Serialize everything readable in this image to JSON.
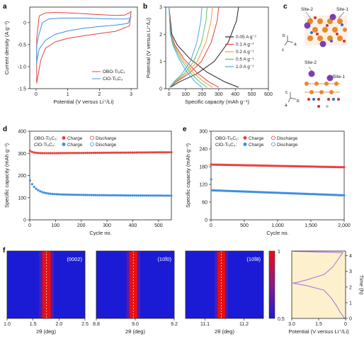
{
  "panels": {
    "a": {
      "label": "a"
    },
    "b": {
      "label": "b"
    },
    "c": {
      "label": "c",
      "site2_top": "Site-2",
      "site1_top": "Site-1",
      "site2_bot": "Site-2",
      "site1_bot": "Site-1",
      "axes_top": {
        "b": "b",
        "c": "c",
        "a": "a"
      },
      "axes_bot": {
        "c": "c",
        "a": "a",
        "b": "b"
      }
    },
    "d": {
      "label": "d"
    },
    "e": {
      "label": "e"
    },
    "f": {
      "label": "f"
    }
  },
  "colors": {
    "obo": "#e8413f",
    "clo": "#3f8fe0",
    "bg_map": "#1b1bd6",
    "potential_bg": "#fdf0cc",
    "potential_line": "#a070e0"
  },
  "chart_data": [
    {
      "id": "a",
      "type": "line",
      "xlabel": "Potential (V versus Li⁺/Li)",
      "ylabel": "Current density (A g⁻¹)",
      "xlim": [
        -0.2,
        3.2
      ],
      "ylim": [
        -1.5,
        0.35
      ],
      "xticks": [
        "0",
        "1",
        "2",
        "3"
      ],
      "yticks": [
        "0",
        "-0.5",
        "-1.0",
        "-1.5"
      ],
      "series": [
        {
          "name": "OBO-Ti₃C₂",
          "color": "#e8413f",
          "upper": [
            [
              0.02,
              -0.35
            ],
            [
              0.1,
              0.15
            ],
            [
              0.3,
              0.22
            ],
            [
              0.6,
              0.23
            ],
            [
              1,
              0.22
            ],
            [
              1.5,
              0.2
            ],
            [
              2,
              0.18
            ],
            [
              2.5,
              0.16
            ],
            [
              2.8,
              0.17
            ],
            [
              2.95,
              0.22
            ],
            [
              3.0,
              0.25
            ]
          ],
          "lower": [
            [
              3.0,
              0.25
            ],
            [
              2.95,
              -0.08
            ],
            [
              2.5,
              -0.2
            ],
            [
              2,
              -0.25
            ],
            [
              1.5,
              -0.3
            ],
            [
              1.0,
              -0.36
            ],
            [
              0.6,
              -0.44
            ],
            [
              0.3,
              -0.58
            ],
            [
              0.15,
              -0.85
            ],
            [
              0.05,
              -1.25
            ],
            [
              0.02,
              -1.38
            ]
          ]
        },
        {
          "name": "ClO-Ti₃C₂",
          "color": "#3f8fe0",
          "upper": [
            [
              0.02,
              -0.52
            ],
            [
              0.08,
              -0.3
            ],
            [
              0.2,
              0.0
            ],
            [
              0.4,
              0.08
            ],
            [
              0.8,
              0.1
            ],
            [
              1.5,
              0.1
            ],
            [
              2,
              0.09
            ],
            [
              2.5,
              0.08
            ],
            [
              2.85,
              0.08
            ],
            [
              2.98,
              0.1
            ],
            [
              3.0,
              0.14
            ]
          ],
          "lower": [
            [
              3.0,
              0.14
            ],
            [
              2.9,
              -0.02
            ],
            [
              2.5,
              -0.06
            ],
            [
              2,
              -0.09
            ],
            [
              1.5,
              -0.13
            ],
            [
              1.0,
              -0.19
            ],
            [
              0.6,
              -0.27
            ],
            [
              0.3,
              -0.4
            ],
            [
              0.1,
              -0.6
            ],
            [
              0.03,
              -0.85
            ],
            [
              0.02,
              -0.95
            ]
          ]
        }
      ],
      "legend": [
        "OBO-Ti₃C₂",
        "ClO-Ti₃C₂"
      ]
    },
    {
      "id": "b",
      "type": "line",
      "xlabel": "Specific capacity (mAh g⁻¹)",
      "ylabel": "Potential (V versus Li⁺/Li)",
      "xlim": [
        -20,
        600
      ],
      "ylim": [
        0,
        3
      ],
      "xticks": [
        "0",
        "100",
        "200",
        "300",
        "400",
        "500",
        "600"
      ],
      "yticks": [
        "0",
        "1",
        "2",
        "3"
      ],
      "series": [
        {
          "name": "0.05 A g⁻¹",
          "color": "#222222",
          "cap": 420
        },
        {
          "name": "0.1 A g⁻¹",
          "color": "#e8413f",
          "cap": 300
        },
        {
          "name": "0.2 A g⁻¹",
          "color": "#f29a3a",
          "cap": 262
        },
        {
          "name": "0.5 A g⁻¹",
          "color": "#5cc36a",
          "cap": 230
        },
        {
          "name": "1.0 A g⁻¹",
          "color": "#4aa7e6",
          "cap": 198
        }
      ]
    },
    {
      "id": "d",
      "type": "scatter",
      "xlabel": "Cycle no.",
      "ylabel": "Specific capacity (mAh g⁻¹)",
      "xlim": [
        0,
        550
      ],
      "ylim": [
        0,
        400
      ],
      "xticks": [
        "0",
        "100",
        "200",
        "300",
        "400",
        "500"
      ],
      "yticks": [
        "0",
        "100",
        "200",
        "300",
        "400"
      ],
      "legend_rows": [
        {
          "label": "OBO-Ti₃C₂:",
          "charge": "Charge",
          "discharge": "Discharge",
          "color": "#e8413f"
        },
        {
          "label": "ClO-Ti₃C₂:",
          "charge": "Charge",
          "discharge": "Discharge",
          "color": "#3f8fe0"
        }
      ],
      "series": [
        {
          "name": "OBO-Ti₃C₂ charge",
          "start": 312,
          "plateau": 300,
          "end": 305,
          "color": "#e8413f"
        },
        {
          "name": "ClO-Ti₃C₂ charge",
          "start": 170,
          "plateau": 120,
          "end": 108,
          "color": "#3f8fe0"
        }
      ]
    },
    {
      "id": "e",
      "type": "scatter",
      "xlabel": "Cycle no.",
      "ylabel": "Specific capacity (mAh g⁻¹)",
      "xlim": [
        0,
        2000
      ],
      "ylim": [
        0,
        300
      ],
      "xticks": [
        "0",
        "500",
        "1,000",
        "1,500",
        "2,000"
      ],
      "yticks": [
        "0",
        "60",
        "120",
        "180",
        "240",
        "300"
      ],
      "legend_rows": [
        {
          "label": "OBO-Ti₃C₂:",
          "charge": "Charge",
          "discharge": "Discharge",
          "color": "#e8413f"
        },
        {
          "label": "ClO-Ti₃C₂:",
          "charge": "Charge",
          "discharge": "Discharge",
          "color": "#3f8fe0"
        }
      ],
      "series": [
        {
          "name": "OBO-Ti₃C₂ charge",
          "start": 187,
          "end": 178,
          "color": "#e8413f"
        },
        {
          "name": "ClO-Ti₃C₂ charge",
          "start": 100,
          "end": 83,
          "first": 137,
          "color": "#3f8fe0"
        }
      ]
    },
    {
      "id": "f",
      "type": "heatmap",
      "maps": [
        {
          "title": "(0002)",
          "xticks": [
            "1.0",
            "1.5",
            "2.0",
            "2.5"
          ],
          "xlim": [
            1.0,
            2.5
          ],
          "peak": 1.76,
          "width": 0.1
        },
        {
          "title": "(10Ī0)",
          "xticks": [
            "8.8",
            "9.0",
            "9.2"
          ],
          "xlim": [
            8.8,
            9.2
          ],
          "peak": 8.99,
          "width": 0.025
        },
        {
          "title": "(10Ī8)",
          "xticks": [
            "11.1",
            "11.2"
          ],
          "xlim": [
            11.05,
            11.25
          ],
          "peak": 11.142,
          "width": 0.012
        }
      ],
      "xlabel": "2θ (deg)",
      "colorbar": {
        "ticks": [
          "1",
          "0.5"
        ],
        "range": [
          0.5,
          1
        ]
      },
      "potential_panel": {
        "xlabel": "Potential (V versus Li⁺/Li)",
        "ylabel": "Time (h)",
        "xticks": [
          "3.0",
          "1.5",
          "0"
        ],
        "yticks": [
          "0",
          "1",
          "2",
          "3",
          "4"
        ],
        "xlim": [
          3.0,
          0
        ],
        "ylim": [
          0,
          4.3
        ]
      }
    }
  ]
}
